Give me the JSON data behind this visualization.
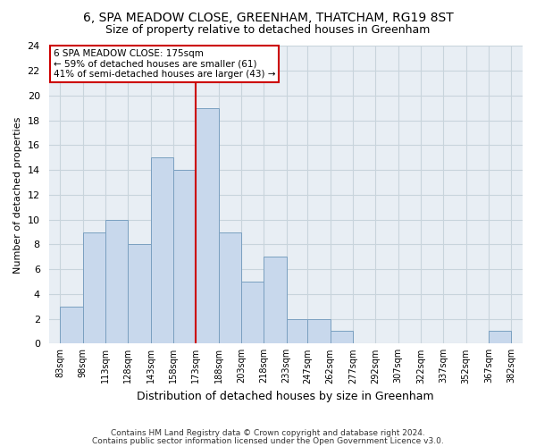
{
  "title": "6, SPA MEADOW CLOSE, GREENHAM, THATCHAM, RG19 8ST",
  "subtitle": "Size of property relative to detached houses in Greenham",
  "xlabel": "Distribution of detached houses by size in Greenham",
  "ylabel": "Number of detached properties",
  "bin_edges": [
    83,
    98,
    113,
    128,
    143,
    158,
    173,
    188,
    203,
    218,
    233,
    247,
    262,
    277,
    292,
    307,
    322,
    337,
    352,
    367,
    382
  ],
  "counts": [
    3,
    9,
    10,
    8,
    15,
    14,
    19,
    9,
    5,
    7,
    2,
    2,
    1,
    0,
    0,
    0,
    0,
    0,
    0,
    1
  ],
  "bar_color": "#c8d8ec",
  "bar_edgecolor": "#7aA0C0",
  "vline_x": 173,
  "vline_color": "#cc0000",
  "ylim": [
    0,
    24
  ],
  "yticks": [
    0,
    2,
    4,
    6,
    8,
    10,
    12,
    14,
    16,
    18,
    20,
    22,
    24
  ],
  "annotation_title": "6 SPA MEADOW CLOSE: 175sqm",
  "annotation_line1": "← 59% of detached houses are smaller (61)",
  "annotation_line2": "41% of semi-detached houses are larger (43) →",
  "annotation_box_edgecolor": "#cc0000",
  "annotation_box_facecolor": "#ffffff",
  "footer_line1": "Contains HM Land Registry data © Crown copyright and database right 2024.",
  "footer_line2": "Contains public sector information licensed under the Open Government Licence v3.0.",
  "bg_color": "#ffffff",
  "plot_bg_color": "#e8eef4",
  "grid_color": "#c8d4dc",
  "tick_labels": [
    "83sqm",
    "98sqm",
    "113sqm",
    "128sqm",
    "143sqm",
    "158sqm",
    "173sqm",
    "188sqm",
    "203sqm",
    "218sqm",
    "233sqm",
    "247sqm",
    "262sqm",
    "277sqm",
    "292sqm",
    "307sqm",
    "322sqm",
    "337sqm",
    "352sqm",
    "367sqm",
    "382sqm"
  ]
}
